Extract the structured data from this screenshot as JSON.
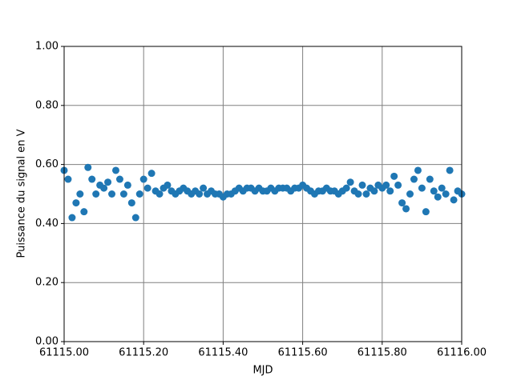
{
  "chart_data": {
    "type": "scatter",
    "xlabel": "MJD",
    "ylabel": "Puissance du signal en V",
    "color": "#1f77b4",
    "grid": true,
    "grid_color": "#808080",
    "xlim": [
      61115,
      61116
    ],
    "ylim": [
      0,
      1
    ],
    "xticks": [
      {
        "value": 61115,
        "label": "61115.00"
      },
      {
        "value": 61115.2,
        "label": "61115.20"
      },
      {
        "value": 61115.4,
        "label": "61115.40"
      },
      {
        "value": 61115.6,
        "label": "61115.60"
      },
      {
        "value": 61115.8,
        "label": "61115.80"
      },
      {
        "value": 61116,
        "label": "61116.00"
      }
    ],
    "yticks": [
      {
        "value": 0,
        "label": "0.00"
      },
      {
        "value": 0.2,
        "label": "0.20"
      },
      {
        "value": 0.4,
        "label": "0.40"
      },
      {
        "value": 0.6,
        "label": "0.60"
      },
      {
        "value": 0.8,
        "label": "0.80"
      },
      {
        "value": 1,
        "label": "1.00"
      }
    ],
    "x": [
      61115,
      61115.01,
      61115.02,
      61115.03,
      61115.04,
      61115.05,
      61115.06,
      61115.07,
      61115.08,
      61115.09,
      61115.1,
      61115.11,
      61115.12,
      61115.13,
      61115.14,
      61115.15,
      61115.16,
      61115.17,
      61115.18,
      61115.19,
      61115.2,
      61115.21,
      61115.22,
      61115.23,
      61115.24,
      61115.25,
      61115.26,
      61115.27,
      61115.28,
      61115.29,
      61115.3,
      61115.31,
      61115.32,
      61115.33,
      61115.34,
      61115.35,
      61115.36,
      61115.37,
      61115.38,
      61115.39,
      61115.4,
      61115.41,
      61115.42,
      61115.43,
      61115.44,
      61115.45,
      61115.46,
      61115.47,
      61115.48,
      61115.49,
      61115.5,
      61115.51,
      61115.52,
      61115.53,
      61115.54,
      61115.55,
      61115.56,
      61115.57,
      61115.58,
      61115.59,
      61115.6,
      61115.61,
      61115.62,
      61115.63,
      61115.64,
      61115.65,
      61115.66,
      61115.67,
      61115.68,
      61115.69,
      61115.7,
      61115.71,
      61115.72,
      61115.73,
      61115.74,
      61115.75,
      61115.76,
      61115.77,
      61115.78,
      61115.79,
      61115.8,
      61115.81,
      61115.82,
      61115.83,
      61115.84,
      61115.85,
      61115.86,
      61115.87,
      61115.88,
      61115.89,
      61115.9,
      61115.91,
      61115.92,
      61115.93,
      61115.94,
      61115.95,
      61115.96,
      61115.97,
      61115.98,
      61115.99,
      61116
    ],
    "values": [
      0.58,
      0.55,
      0.42,
      0.47,
      0.5,
      0.44,
      0.59,
      0.55,
      0.5,
      0.53,
      0.52,
      0.54,
      0.5,
      0.58,
      0.55,
      0.5,
      0.53,
      0.47,
      0.42,
      0.5,
      0.55,
      0.52,
      0.57,
      0.51,
      0.5,
      0.52,
      0.53,
      0.51,
      0.5,
      0.51,
      0.52,
      0.51,
      0.5,
      0.51,
      0.5,
      0.52,
      0.5,
      0.51,
      0.5,
      0.5,
      0.49,
      0.5,
      0.5,
      0.51,
      0.52,
      0.51,
      0.52,
      0.52,
      0.51,
      0.52,
      0.51,
      0.51,
      0.52,
      0.51,
      0.52,
      0.52,
      0.52,
      0.51,
      0.52,
      0.52,
      0.53,
      0.52,
      0.51,
      0.5,
      0.51,
      0.51,
      0.52,
      0.51,
      0.51,
      0.5,
      0.51,
      0.52,
      0.54,
      0.51,
      0.5,
      0.53,
      0.5,
      0.52,
      0.51,
      0.53,
      0.52,
      0.53,
      0.51,
      0.56,
      0.53,
      0.47,
      0.45,
      0.5,
      0.55,
      0.58,
      0.52,
      0.44,
      0.55,
      0.51,
      0.49,
      0.52,
      0.5,
      0.58,
      0.48,
      0.51,
      0.5
    ]
  }
}
